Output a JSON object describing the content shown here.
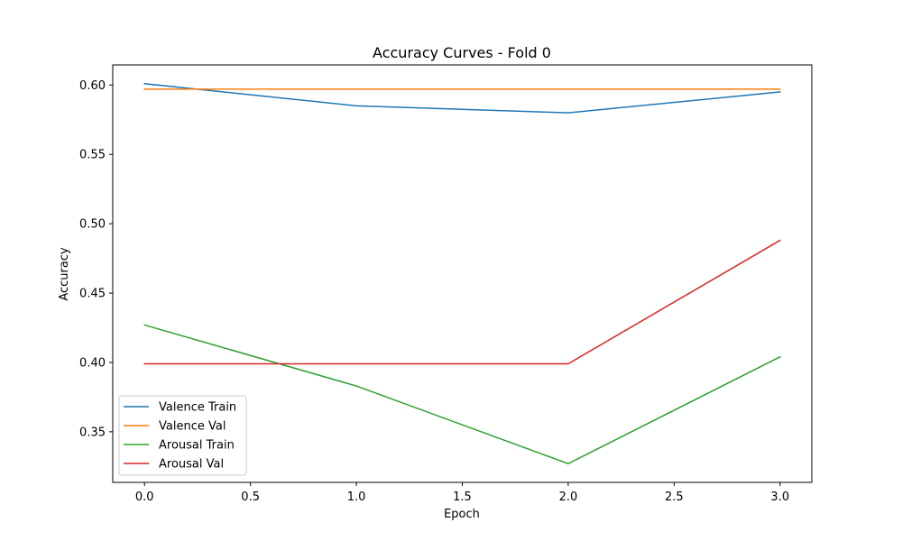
{
  "chart_data": {
    "type": "line",
    "title": "Accuracy Curves - Fold 0",
    "xlabel": "Epoch",
    "ylabel": "Accuracy",
    "xlim": [
      -0.15,
      3.15
    ],
    "ylim": [
      0.3135,
      0.6145
    ],
    "x_ticks": [
      0.0,
      0.5,
      1.0,
      1.5,
      2.0,
      2.5,
      3.0
    ],
    "x_tick_labels": [
      "0.0",
      "0.5",
      "1.0",
      "1.5",
      "2.0",
      "2.5",
      "3.0"
    ],
    "y_ticks": [
      0.35,
      0.4,
      0.45,
      0.5,
      0.55,
      0.6
    ],
    "y_tick_labels": [
      "0.35",
      "0.40",
      "0.45",
      "0.50",
      "0.55",
      "0.60"
    ],
    "grid": false,
    "legend_position": "lower-left",
    "x": [
      0,
      1,
      2,
      3
    ],
    "series": [
      {
        "name": "Valence Train",
        "color": "#1f77b4",
        "values": [
          0.601,
          0.585,
          0.58,
          0.595
        ]
      },
      {
        "name": "Valence Val",
        "color": "#ff7f0e",
        "values": [
          0.597,
          0.597,
          0.597,
          0.597
        ]
      },
      {
        "name": "Arousal Train",
        "color": "#2ca02c",
        "values": [
          0.427,
          0.383,
          0.327,
          0.404
        ]
      },
      {
        "name": "Arousal Val",
        "color": "#d62728",
        "values": [
          0.399,
          0.399,
          0.399,
          0.488
        ]
      }
    ]
  }
}
